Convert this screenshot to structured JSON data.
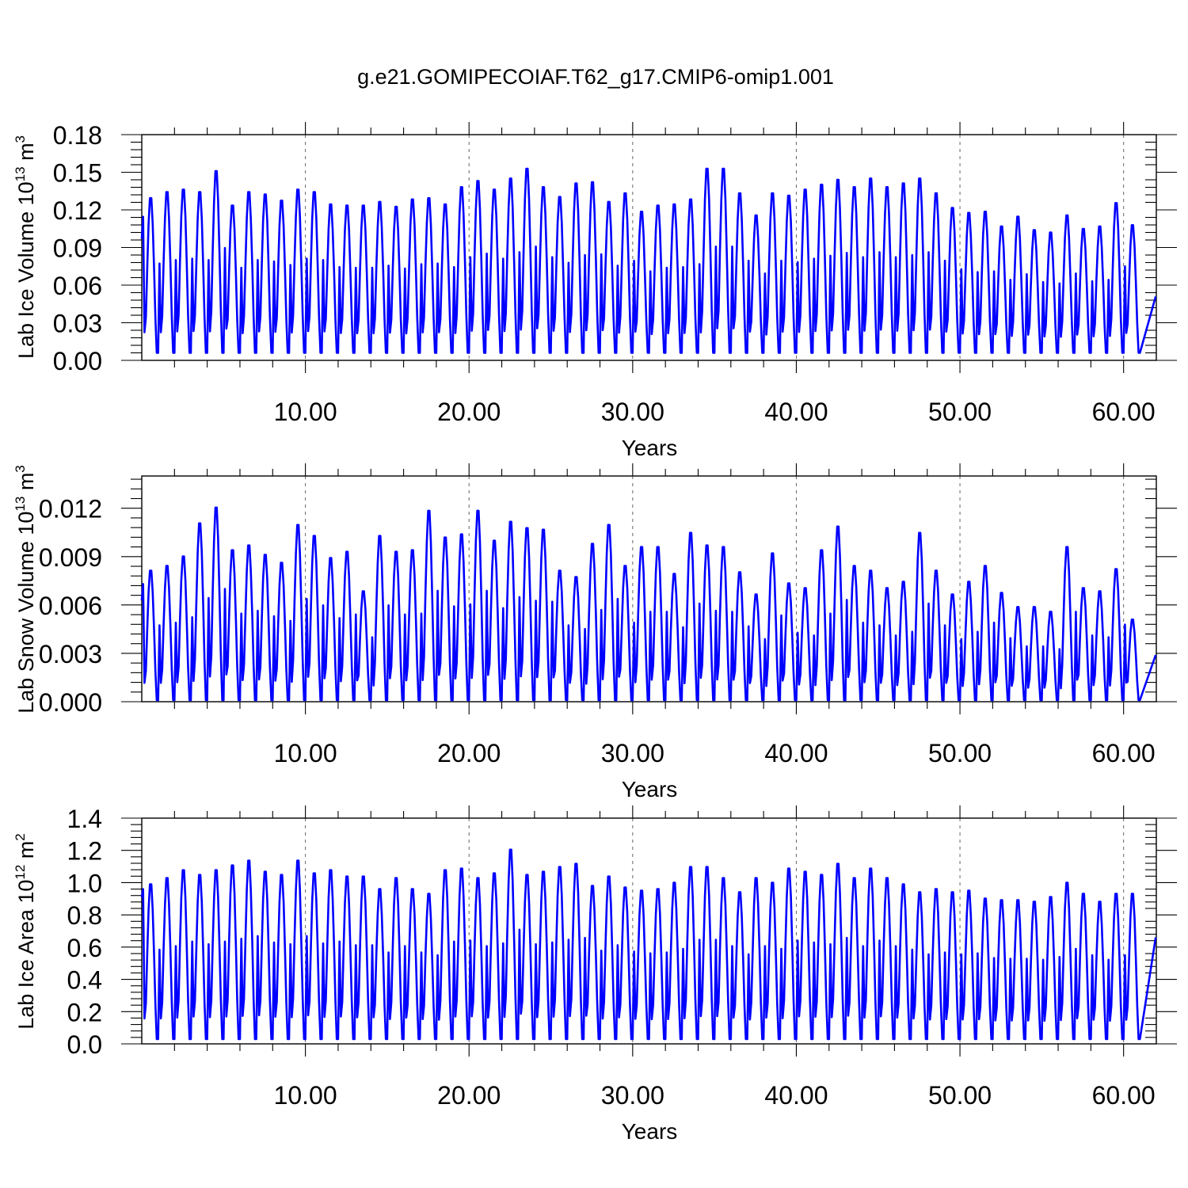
{
  "title": "g.e21.GOMIPECOIAF.T62_g17.CMIP6-omip1.001",
  "colors": {
    "series": "#0000ff",
    "axes": "#000000",
    "background": "#ffffff"
  },
  "chart_data": [
    {
      "type": "line",
      "ylabel_main": "Lab Ice Volume 10",
      "ylabel_sup": "13",
      "ylabel_unit": "m",
      "ylabel_unit_sup": "3",
      "xlabel": "Years",
      "xlim": [
        0,
        62
      ],
      "ylim": [
        0,
        0.18
      ],
      "x_ticks": [
        10,
        20,
        30,
        40,
        50,
        60
      ],
      "x_tick_labels": [
        "10.00",
        "20.00",
        "30.00",
        "40.00",
        "50.00",
        "60.00"
      ],
      "y_ticks": [
        0,
        0.03,
        0.06,
        0.09,
        0.12,
        0.15,
        0.18
      ],
      "y_tick_labels": [
        "0.00",
        "0.03",
        "0.06",
        "0.09",
        "0.12",
        "0.15",
        "0.18"
      ],
      "grid": "vertical dashed at labeled x ticks",
      "series_color": "#0000ff",
      "first_value": 0.097,
      "last_value": 0.051,
      "winter_min": 0.006,
      "annual_peaks": [
        0.132,
        0.137,
        0.139,
        0.137,
        0.154,
        0.126,
        0.137,
        0.135,
        0.13,
        0.139,
        0.137,
        0.127,
        0.126,
        0.126,
        0.129,
        0.125,
        0.131,
        0.132,
        0.127,
        0.141,
        0.146,
        0.139,
        0.148,
        0.156,
        0.141,
        0.133,
        0.144,
        0.145,
        0.129,
        0.136,
        0.121,
        0.126,
        0.127,
        0.131,
        0.156,
        0.156,
        0.136,
        0.118,
        0.136,
        0.134,
        0.139,
        0.143,
        0.147,
        0.141,
        0.148,
        0.141,
        0.144,
        0.148,
        0.136,
        0.124,
        0.12,
        0.121,
        0.109,
        0.117,
        0.106,
        0.104,
        0.118,
        0.107,
        0.109,
        0.128,
        0.11
      ]
    },
    {
      "type": "line",
      "ylabel_main": "Lab Snow Volume 10",
      "ylabel_sup": "13",
      "ylabel_unit": "m",
      "ylabel_unit_sup": "3",
      "xlabel": "Years",
      "xlim": [
        0,
        62
      ],
      "ylim": [
        0,
        0.014
      ],
      "x_ticks": [
        10,
        20,
        30,
        40,
        50,
        60
      ],
      "x_tick_labels": [
        "10.00",
        "20.00",
        "30.00",
        "40.00",
        "50.00",
        "60.00"
      ],
      "y_ticks": [
        0,
        0.003,
        0.006,
        0.009,
        0.012
      ],
      "y_tick_labels": [
        "0.000",
        "0.003",
        "0.006",
        "0.009",
        "0.012"
      ],
      "grid": "vertical dashed at labeled x ticks",
      "series_color": "#0000ff",
      "first_value": 0.0063,
      "last_value": 0.0029,
      "winter_min": 0.0001,
      "annual_peaks": [
        0.0083,
        0.0086,
        0.0092,
        0.0113,
        0.0123,
        0.0096,
        0.0099,
        0.0093,
        0.0088,
        0.0112,
        0.0105,
        0.0091,
        0.0095,
        0.007,
        0.0105,
        0.0095,
        0.0096,
        0.0121,
        0.0104,
        0.0106,
        0.0121,
        0.0102,
        0.0114,
        0.011,
        0.0109,
        0.0083,
        0.0079,
        0.01,
        0.0112,
        0.0086,
        0.0098,
        0.0098,
        0.0081,
        0.0107,
        0.0099,
        0.0098,
        0.0082,
        0.0068,
        0.0094,
        0.0075,
        0.0072,
        0.0096,
        0.0111,
        0.0086,
        0.0083,
        0.0072,
        0.0076,
        0.0107,
        0.0083,
        0.0068,
        0.0076,
        0.0086,
        0.0069,
        0.006,
        0.006,
        0.0057,
        0.0098,
        0.0072,
        0.007,
        0.0084,
        0.0052
      ]
    },
    {
      "type": "line",
      "ylabel_main": "Lab Ice Area 10",
      "ylabel_sup": "12",
      "ylabel_unit": "m",
      "ylabel_unit_sup": "2",
      "xlabel": "Years",
      "xlim": [
        0,
        62
      ],
      "ylim": [
        0,
        1.4
      ],
      "x_ticks": [
        10,
        20,
        30,
        40,
        50,
        60
      ],
      "x_tick_labels": [
        "10.00",
        "20.00",
        "30.00",
        "40.00",
        "50.00",
        "60.00"
      ],
      "y_ticks": [
        0,
        0.2,
        0.4,
        0.6,
        0.8,
        1.0,
        1.2,
        1.4
      ],
      "y_tick_labels": [
        "0.0",
        "0.2",
        "0.4",
        "0.6",
        "0.8",
        "1.0",
        "1.2",
        "1.4"
      ],
      "grid": "vertical dashed at labeled x ticks",
      "series_color": "#0000ff",
      "first_value": 0.91,
      "last_value": 0.66,
      "winter_min": 0.03,
      "annual_peaks": [
        1.01,
        1.05,
        1.1,
        1.07,
        1.1,
        1.13,
        1.16,
        1.09,
        1.07,
        1.16,
        1.08,
        1.1,
        1.06,
        1.06,
        0.98,
        1.05,
        0.98,
        0.95,
        1.1,
        1.11,
        1.05,
        1.08,
        1.23,
        1.07,
        1.09,
        1.12,
        1.14,
        1.0,
        1.06,
        0.99,
        0.97,
        0.98,
        1.02,
        1.12,
        1.12,
        1.05,
        0.96,
        1.05,
        1.02,
        1.11,
        1.09,
        1.07,
        1.14,
        1.05,
        1.11,
        1.05,
        1.01,
        0.96,
        0.98,
        0.96,
        0.97,
        0.92,
        0.91,
        0.91,
        0.9,
        0.93,
        1.02,
        0.95,
        0.9,
        0.95,
        0.95
      ]
    }
  ]
}
